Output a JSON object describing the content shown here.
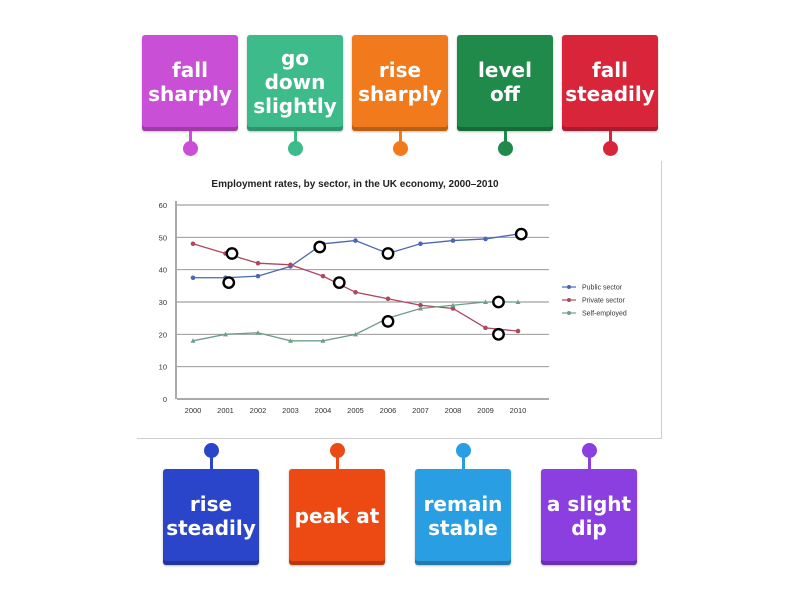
{
  "tiles_top": [
    {
      "label": "fall sharply",
      "color": "#c84fd6"
    },
    {
      "label": "go down slightly",
      "color": "#3dbb8a"
    },
    {
      "label": "rise sharply",
      "color": "#f07a1c"
    },
    {
      "label": "level off",
      "color": "#1f8a4a"
    },
    {
      "label": "fall steadily",
      "color": "#d9253a"
    }
  ],
  "tiles_bottom": [
    {
      "label": "rise steadily",
      "color": "#2a45c9"
    },
    {
      "label": "peak at",
      "color": "#ec4a12"
    },
    {
      "label": "remain stable",
      "color": "#2a9ee3"
    },
    {
      "label": "a slight dip",
      "color": "#8b3fe0"
    }
  ],
  "chart_data": {
    "type": "line",
    "title": "Employment rates, by sector, in the UK economy, 2000–2010",
    "x": [
      "2000",
      "2001",
      "2002",
      "2003",
      "2004",
      "2005",
      "2006",
      "2007",
      "2008",
      "2009",
      "2010"
    ],
    "yticks": [
      "0",
      "10",
      "20",
      "30",
      "40",
      "50",
      "60"
    ],
    "ylim": [
      0,
      60
    ],
    "grid": true,
    "legend_position": "right",
    "series": [
      {
        "name": "Public sector",
        "color": "#4b68b0",
        "values": [
          37.5,
          37.5,
          38,
          41,
          48,
          49,
          45,
          48,
          49,
          49.5,
          51
        ]
      },
      {
        "name": "Private sector",
        "color": "#b0475e",
        "values": [
          48,
          45,
          42,
          41.5,
          38,
          33,
          31,
          29,
          28,
          22,
          21
        ]
      },
      {
        "name": "Self-employed",
        "color": "#6e9e87",
        "values": [
          18,
          20,
          20.5,
          18,
          18,
          20,
          25,
          28,
          29,
          30,
          30
        ]
      }
    ],
    "markers": [
      {
        "x": 2001.2,
        "y": 45
      },
      {
        "x": 2001.1,
        "y": 36
      },
      {
        "x": 2003.9,
        "y": 47
      },
      {
        "x": 2004.5,
        "y": 36
      },
      {
        "x": 2006,
        "y": 45
      },
      {
        "x": 2006,
        "y": 24
      },
      {
        "x": 2009.4,
        "y": 30
      },
      {
        "x": 2009.4,
        "y": 20
      },
      {
        "x": 2010.1,
        "y": 51
      }
    ]
  }
}
